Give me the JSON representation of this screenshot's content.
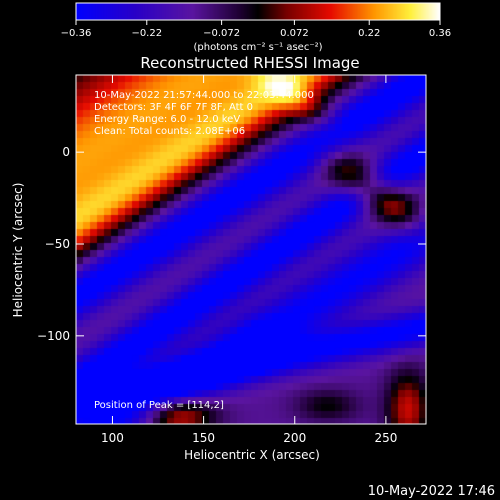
{
  "chart_data": {
    "type": "heatmap",
    "title": "Reconstructed RHESSI Image",
    "xlabel": "Heliocentric X (arcsec)",
    "ylabel": "Heliocentric Y (arcsec)",
    "xlim": [
      80,
      272
    ],
    "ylim": [
      -148,
      42
    ],
    "x_ticks": [
      100,
      150,
      200,
      250
    ],
    "y_ticks": [
      0,
      -50,
      -100
    ],
    "colorbar": {
      "ticks": [
        -0.36,
        -0.22,
        -0.072,
        0.072,
        0.22,
        0.36
      ],
      "tick_labels": [
        "−0.36",
        "−0.22",
        "−0.072",
        "0.072",
        "0.22",
        "0.36"
      ],
      "range": [
        -0.36,
        0.36
      ],
      "unit_label": "(photons cm⁻² s⁻¹ asec⁻²)"
    },
    "annotations": [
      "10-May-2022 21:57:44.000 to 22:03:44.000",
      "Detectors: 3F 4F 6F 7F 8F, Att 0",
      "Energy Range: 6.0 - 12.0 keV",
      "Clean: Total counts: 2.08E+06"
    ],
    "peak_label": "Position of Peak = [114,2]",
    "peak": [
      114,
      2
    ],
    "features": [
      {
        "type": "ridge",
        "from": [
          80,
          -5
        ],
        "to": [
          155,
          45
        ],
        "width": 28,
        "value": 0.36
      },
      {
        "type": "ridge",
        "from": [
          80,
          -40
        ],
        "to": [
          210,
          45
        ],
        "width": 9,
        "value": 0.18
      },
      {
        "type": "ridge",
        "from": [
          80,
          -78
        ],
        "to": [
          272,
          42
        ],
        "width": 9,
        "value": -0.3
      },
      {
        "type": "ridge",
        "from": [
          150,
          -80
        ],
        "to": [
          272,
          0
        ],
        "width": 8,
        "value": -0.28
      },
      {
        "type": "ridge",
        "from": [
          150,
          -118
        ],
        "to": [
          272,
          -46
        ],
        "width": 10,
        "value": -0.24
      },
      {
        "type": "ridge",
        "from": [
          80,
          -135
        ],
        "to": [
          272,
          -95
        ],
        "width": 7,
        "value": -0.26
      },
      {
        "type": "blob",
        "center": [
          244,
          -22
        ],
        "sx": 8,
        "sy": 22,
        "rot": 55,
        "value": 0.3
      },
      {
        "type": "blob",
        "center": [
          202,
          28
        ],
        "sx": 6,
        "sy": 18,
        "rot": 55,
        "value": 0.14
      },
      {
        "type": "blob",
        "center": [
          135,
          -143
        ],
        "sx": 14,
        "sy": 8,
        "rot": 0,
        "value": 0.28
      },
      {
        "type": "blob",
        "center": [
          262,
          -140
        ],
        "sx": 8,
        "sy": 14,
        "rot": 0,
        "value": 0.24
      },
      {
        "type": "blob",
        "center": [
          218,
          -138
        ],
        "sx": 12,
        "sy": 6,
        "rot": 0,
        "value": 0.12
      },
      {
        "type": "blob",
        "center": [
          182,
          -104
        ],
        "sx": 10,
        "sy": 8,
        "rot": 0,
        "value": -0.12
      }
    ]
  },
  "footer_date": "10-May-2022 17:46"
}
